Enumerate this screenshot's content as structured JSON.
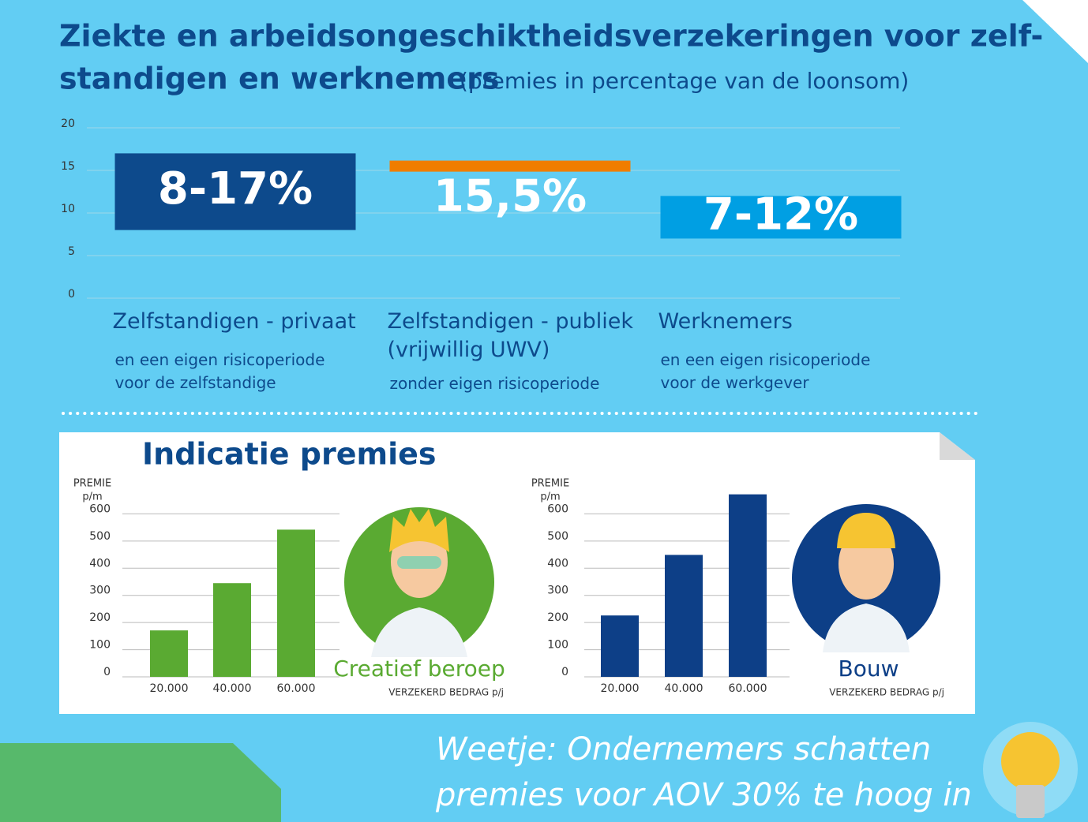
{
  "title": [
    "Ziekte en arbeidsongeschiktheidsverzekeringen voor zelf-",
    "standigen en werknemers"
  ],
  "subtitle": "(premies in percentage van de loonsom)",
  "panel_title": "Indicatie premies",
  "footer_note": [
    "Weetje: Ondernemers schatten",
    "premies voor AOV 30% te hoog in"
  ],
  "chart_data": [
    {
      "type": "range",
      "categories": [
        "Zelfstandigen - privaat",
        "Zelfstandigen - publiek (vrijwillig UWV)",
        "Werknemers"
      ],
      "category_notes": [
        "en een eigen risicoperiode voor de zelfstandige",
        "zonder eigen risicoperiode",
        "en een eigen risicoperiode voor de werkgever"
      ],
      "low": [
        8,
        15.5,
        7
      ],
      "high": [
        17,
        15.5,
        12
      ],
      "value_labels": [
        "8-17%",
        "15,5%",
        "7-12%"
      ],
      "colors": [
        "#0d4a8c",
        "#f07d00",
        "#009fe3"
      ],
      "ylim": [
        0,
        20
      ],
      "yticks": [
        0,
        5,
        10,
        15,
        20
      ],
      "grid": true
    },
    {
      "type": "bar",
      "ylabel": [
        "PREMIE",
        "p/m"
      ],
      "xlabel": "VERZEKERD BEDRAG p/j",
      "caption": "Creatief beroep",
      "categories": [
        "20.000",
        "40.000",
        "60.000"
      ],
      "values": [
        171,
        345,
        542
      ],
      "color": "#5aaa32",
      "ylim": [
        0,
        700
      ],
      "yticks": [
        0,
        100,
        200,
        300,
        400,
        500,
        600
      ],
      "grid": true
    },
    {
      "type": "bar",
      "ylabel": [
        "PREMIE",
        "p/m"
      ],
      "xlabel": "VERZEKERD BEDRAG p/j",
      "caption": "Bouw",
      "categories": [
        "20.000",
        "40.000",
        "60.000"
      ],
      "values": [
        226,
        449,
        672
      ],
      "color": "#0d3f87",
      "ylim": [
        0,
        700
      ],
      "yticks": [
        0,
        100,
        200,
        300,
        400,
        500,
        600
      ],
      "grid": true
    }
  ]
}
